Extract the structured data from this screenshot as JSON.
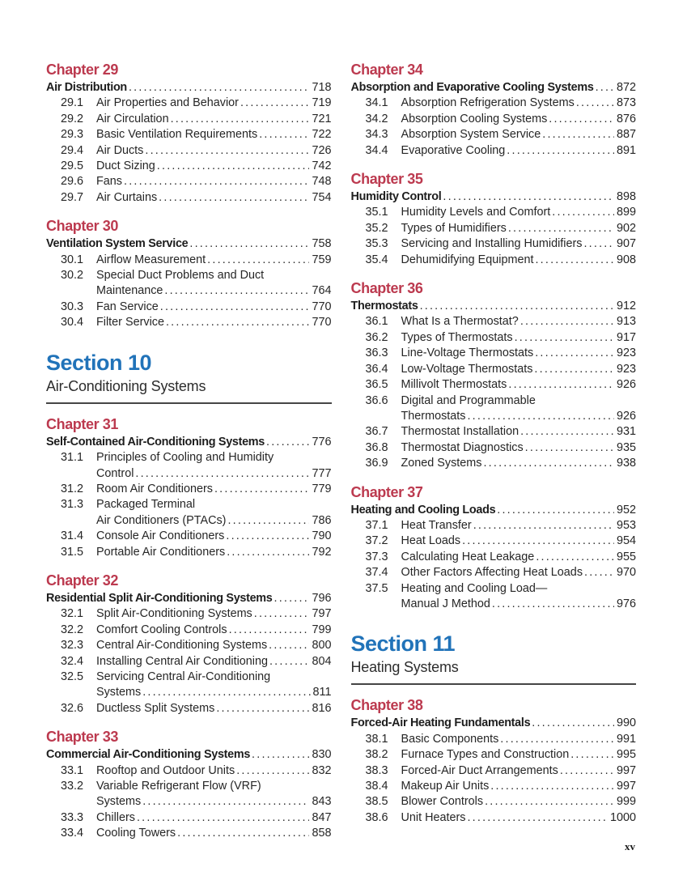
{
  "page": {
    "number": "xv"
  },
  "colors": {
    "chapter_heading": "#BC3A4F",
    "section_heading": "#2173B9",
    "body_text": "#262626",
    "rule": "#454545"
  },
  "left_column": [
    {
      "type": "chapter",
      "label": "Chapter 29",
      "title": "Air Distribution",
      "page": "718",
      "sections": [
        {
          "num": "29.1",
          "lines": [
            "Air Properties and Behavior"
          ],
          "page": "719"
        },
        {
          "num": "29.2",
          "lines": [
            "Air Circulation"
          ],
          "page": "721"
        },
        {
          "num": "29.3",
          "lines": [
            "Basic Ventilation Requirements"
          ],
          "page": "722"
        },
        {
          "num": "29.4",
          "lines": [
            "Air Ducts"
          ],
          "page": "726"
        },
        {
          "num": "29.5",
          "lines": [
            "Duct Sizing"
          ],
          "page": "742"
        },
        {
          "num": "29.6",
          "lines": [
            "Fans"
          ],
          "page": "748"
        },
        {
          "num": "29.7",
          "lines": [
            "Air Curtains"
          ],
          "page": "754"
        }
      ]
    },
    {
      "type": "chapter",
      "label": "Chapter 30",
      "title": "Ventilation System Service",
      "page": "758",
      "sections": [
        {
          "num": "30.1",
          "lines": [
            "Airflow Measurement"
          ],
          "page": "759"
        },
        {
          "num": "30.2",
          "lines": [
            "Special Duct Problems and Duct",
            "Maintenance"
          ],
          "page": "764"
        },
        {
          "num": "30.3",
          "lines": [
            "Fan Service"
          ],
          "page": "770"
        },
        {
          "num": "30.4",
          "lines": [
            "Filter Service"
          ],
          "page": "770"
        }
      ]
    },
    {
      "type": "section",
      "label": "Section 10",
      "title": "Air-Conditioning Systems"
    },
    {
      "type": "chapter",
      "label": "Chapter 31",
      "title": "Self-Contained Air-Conditioning Systems",
      "page": "776",
      "sections": [
        {
          "num": "31.1",
          "lines": [
            "Principles of Cooling and Humidity",
            "Control"
          ],
          "page": "777"
        },
        {
          "num": "31.2",
          "lines": [
            "Room Air Conditioners"
          ],
          "page": "779"
        },
        {
          "num": "31.3",
          "lines": [
            "Packaged Terminal",
            "Air Conditioners (PTACs)"
          ],
          "page": "786"
        },
        {
          "num": "31.4",
          "lines": [
            "Console Air Conditioners"
          ],
          "page": "790"
        },
        {
          "num": "31.5",
          "lines": [
            "Portable Air Conditioners"
          ],
          "page": "792"
        }
      ]
    },
    {
      "type": "chapter",
      "label": "Chapter 32",
      "title": "Residential Split Air-Conditioning Systems",
      "page": "796",
      "sections": [
        {
          "num": "32.1",
          "lines": [
            "Split Air-Conditioning Systems"
          ],
          "page": "797"
        },
        {
          "num": "32.2",
          "lines": [
            "Comfort Cooling Controls"
          ],
          "page": "799"
        },
        {
          "num": "32.3",
          "lines": [
            "Central Air-Conditioning Systems"
          ],
          "page": "800"
        },
        {
          "num": "32.4",
          "lines": [
            "Installing Central Air Conditioning"
          ],
          "page": "804"
        },
        {
          "num": "32.5",
          "lines": [
            "Servicing Central Air-Conditioning",
            "Systems"
          ],
          "page": "811"
        },
        {
          "num": "32.6",
          "lines": [
            "Ductless Split Systems"
          ],
          "page": "816"
        }
      ]
    },
    {
      "type": "chapter",
      "label": "Chapter 33",
      "title": "Commercial Air-Conditioning Systems",
      "page": "830",
      "sections": [
        {
          "num": "33.1",
          "lines": [
            "Rooftop and Outdoor Units"
          ],
          "page": "832"
        },
        {
          "num": "33.2",
          "lines": [
            "Variable Refrigerant Flow (VRF)",
            "Systems"
          ],
          "page": "843"
        },
        {
          "num": "33.3",
          "lines": [
            "Chillers"
          ],
          "page": "847"
        },
        {
          "num": "33.4",
          "lines": [
            "Cooling Towers"
          ],
          "page": "858"
        }
      ]
    }
  ],
  "right_column": [
    {
      "type": "chapter",
      "label": "Chapter 34",
      "title": "Absorption and Evaporative Cooling Systems",
      "page": "872",
      "sections": [
        {
          "num": "34.1",
          "lines": [
            "Absorption Refrigeration Systems"
          ],
          "page": "873"
        },
        {
          "num": "34.2",
          "lines": [
            "Absorption Cooling Systems"
          ],
          "page": "876"
        },
        {
          "num": "34.3",
          "lines": [
            "Absorption System Service"
          ],
          "page": "887"
        },
        {
          "num": "34.4",
          "lines": [
            "Evaporative Cooling"
          ],
          "page": "891"
        }
      ]
    },
    {
      "type": "chapter",
      "label": "Chapter 35",
      "title": "Humidity Control",
      "page": "898",
      "sections": [
        {
          "num": "35.1",
          "lines": [
            "Humidity Levels and Comfort"
          ],
          "page": "899"
        },
        {
          "num": "35.2",
          "lines": [
            "Types of Humidifiers"
          ],
          "page": "902"
        },
        {
          "num": "35.3",
          "lines": [
            "Servicing and Installing Humidifiers"
          ],
          "page": "907"
        },
        {
          "num": "35.4",
          "lines": [
            "Dehumidifying Equipment"
          ],
          "page": "908"
        }
      ]
    },
    {
      "type": "chapter",
      "label": "Chapter 36",
      "title": "Thermostats",
      "page": "912",
      "sections": [
        {
          "num": "36.1",
          "lines": [
            "What Is a Thermostat?"
          ],
          "page": "913"
        },
        {
          "num": "36.2",
          "lines": [
            "Types of Thermostats"
          ],
          "page": "917"
        },
        {
          "num": "36.3",
          "lines": [
            "Line-Voltage Thermostats"
          ],
          "page": "923"
        },
        {
          "num": "36.4",
          "lines": [
            "Low-Voltage Thermostats"
          ],
          "page": "923"
        },
        {
          "num": "36.5",
          "lines": [
            "Millivolt Thermostats"
          ],
          "page": "926"
        },
        {
          "num": "36.6",
          "lines": [
            "Digital and Programmable",
            "Thermostats"
          ],
          "page": "926"
        },
        {
          "num": "36.7",
          "lines": [
            "Thermostat Installation"
          ],
          "page": "931"
        },
        {
          "num": "36.8",
          "lines": [
            "Thermostat Diagnostics"
          ],
          "page": "935"
        },
        {
          "num": "36.9",
          "lines": [
            "Zoned Systems"
          ],
          "page": "938"
        }
      ]
    },
    {
      "type": "chapter",
      "label": "Chapter 37",
      "title": "Heating and Cooling Loads",
      "page": "952",
      "sections": [
        {
          "num": "37.1",
          "lines": [
            "Heat Transfer"
          ],
          "page": "953"
        },
        {
          "num": "37.2",
          "lines": [
            "Heat Loads"
          ],
          "page": "954"
        },
        {
          "num": "37.3",
          "lines": [
            "Calculating Heat Leakage"
          ],
          "page": "955"
        },
        {
          "num": "37.4",
          "lines": [
            "Other Factors Affecting Heat Loads"
          ],
          "page": "970"
        },
        {
          "num": "37.5",
          "lines": [
            "Heating and Cooling Load—",
            "Manual J Method"
          ],
          "page": "976"
        }
      ]
    },
    {
      "type": "section",
      "label": "Section 11",
      "title": "Heating Systems"
    },
    {
      "type": "chapter",
      "label": "Chapter 38",
      "title": "Forced-Air Heating Fundamentals",
      "page": "990",
      "sections": [
        {
          "num": "38.1",
          "lines": [
            "Basic Components"
          ],
          "page": "991"
        },
        {
          "num": "38.2",
          "lines": [
            "Furnace Types and Construction"
          ],
          "page": "995"
        },
        {
          "num": "38.3",
          "lines": [
            "Forced-Air Duct Arrangements"
          ],
          "page": "997"
        },
        {
          "num": "38.4",
          "lines": [
            "Makeup Air Units"
          ],
          "page": "997"
        },
        {
          "num": "38.5",
          "lines": [
            "Blower Controls"
          ],
          "page": "999"
        },
        {
          "num": "38.6",
          "lines": [
            "Unit Heaters"
          ],
          "page": "1000"
        }
      ]
    }
  ]
}
